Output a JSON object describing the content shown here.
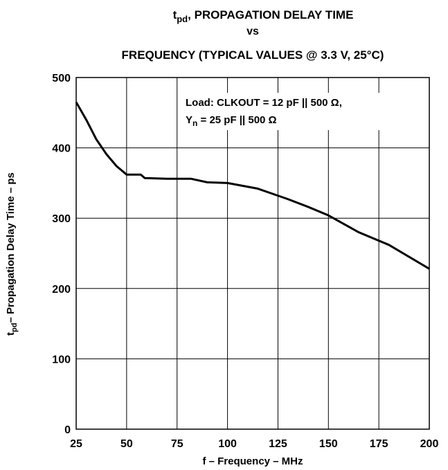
{
  "chart_data": {
    "type": "line",
    "title": {
      "symbol": "t",
      "subscript": "pd",
      "text": ", PROPAGATION DELAY TIME"
    },
    "title_line2": "vs",
    "title_line3": "FREQUENCY (TYPICAL VALUES @ 3.3 V, 25°C)",
    "x_label": "f – Frequency – MHz",
    "y_label": {
      "symbol": "t",
      "subscript": "pd",
      "text": "– Propagation Delay Time – ps"
    },
    "annotation": {
      "line1": "Load: CLKOUT = 12 pF || 500 Ω,",
      "symbol": "Y",
      "subscript": "n",
      "rest": " = 25 pF || 500 Ω"
    },
    "x": [
      25,
      30,
      35,
      40,
      45,
      50,
      54,
      57,
      59,
      70,
      82,
      90,
      100,
      115,
      130,
      140,
      150,
      165,
      180,
      200
    ],
    "series": [
      {
        "name": "tpd",
        "color": "#000000",
        "values": [
          465,
          440,
          412,
          391,
          374,
          362,
          362,
          362,
          357,
          356,
          356,
          351,
          350,
          342,
          327,
          316,
          304,
          280,
          262,
          228
        ]
      }
    ],
    "xlim": [
      25,
      200
    ],
    "xticks": [
      25,
      50,
      75,
      100,
      125,
      150,
      175,
      200
    ],
    "ylim": [
      0,
      500
    ],
    "yticks": [
      0,
      100,
      200,
      300,
      400,
      500
    ],
    "grid": true
  }
}
